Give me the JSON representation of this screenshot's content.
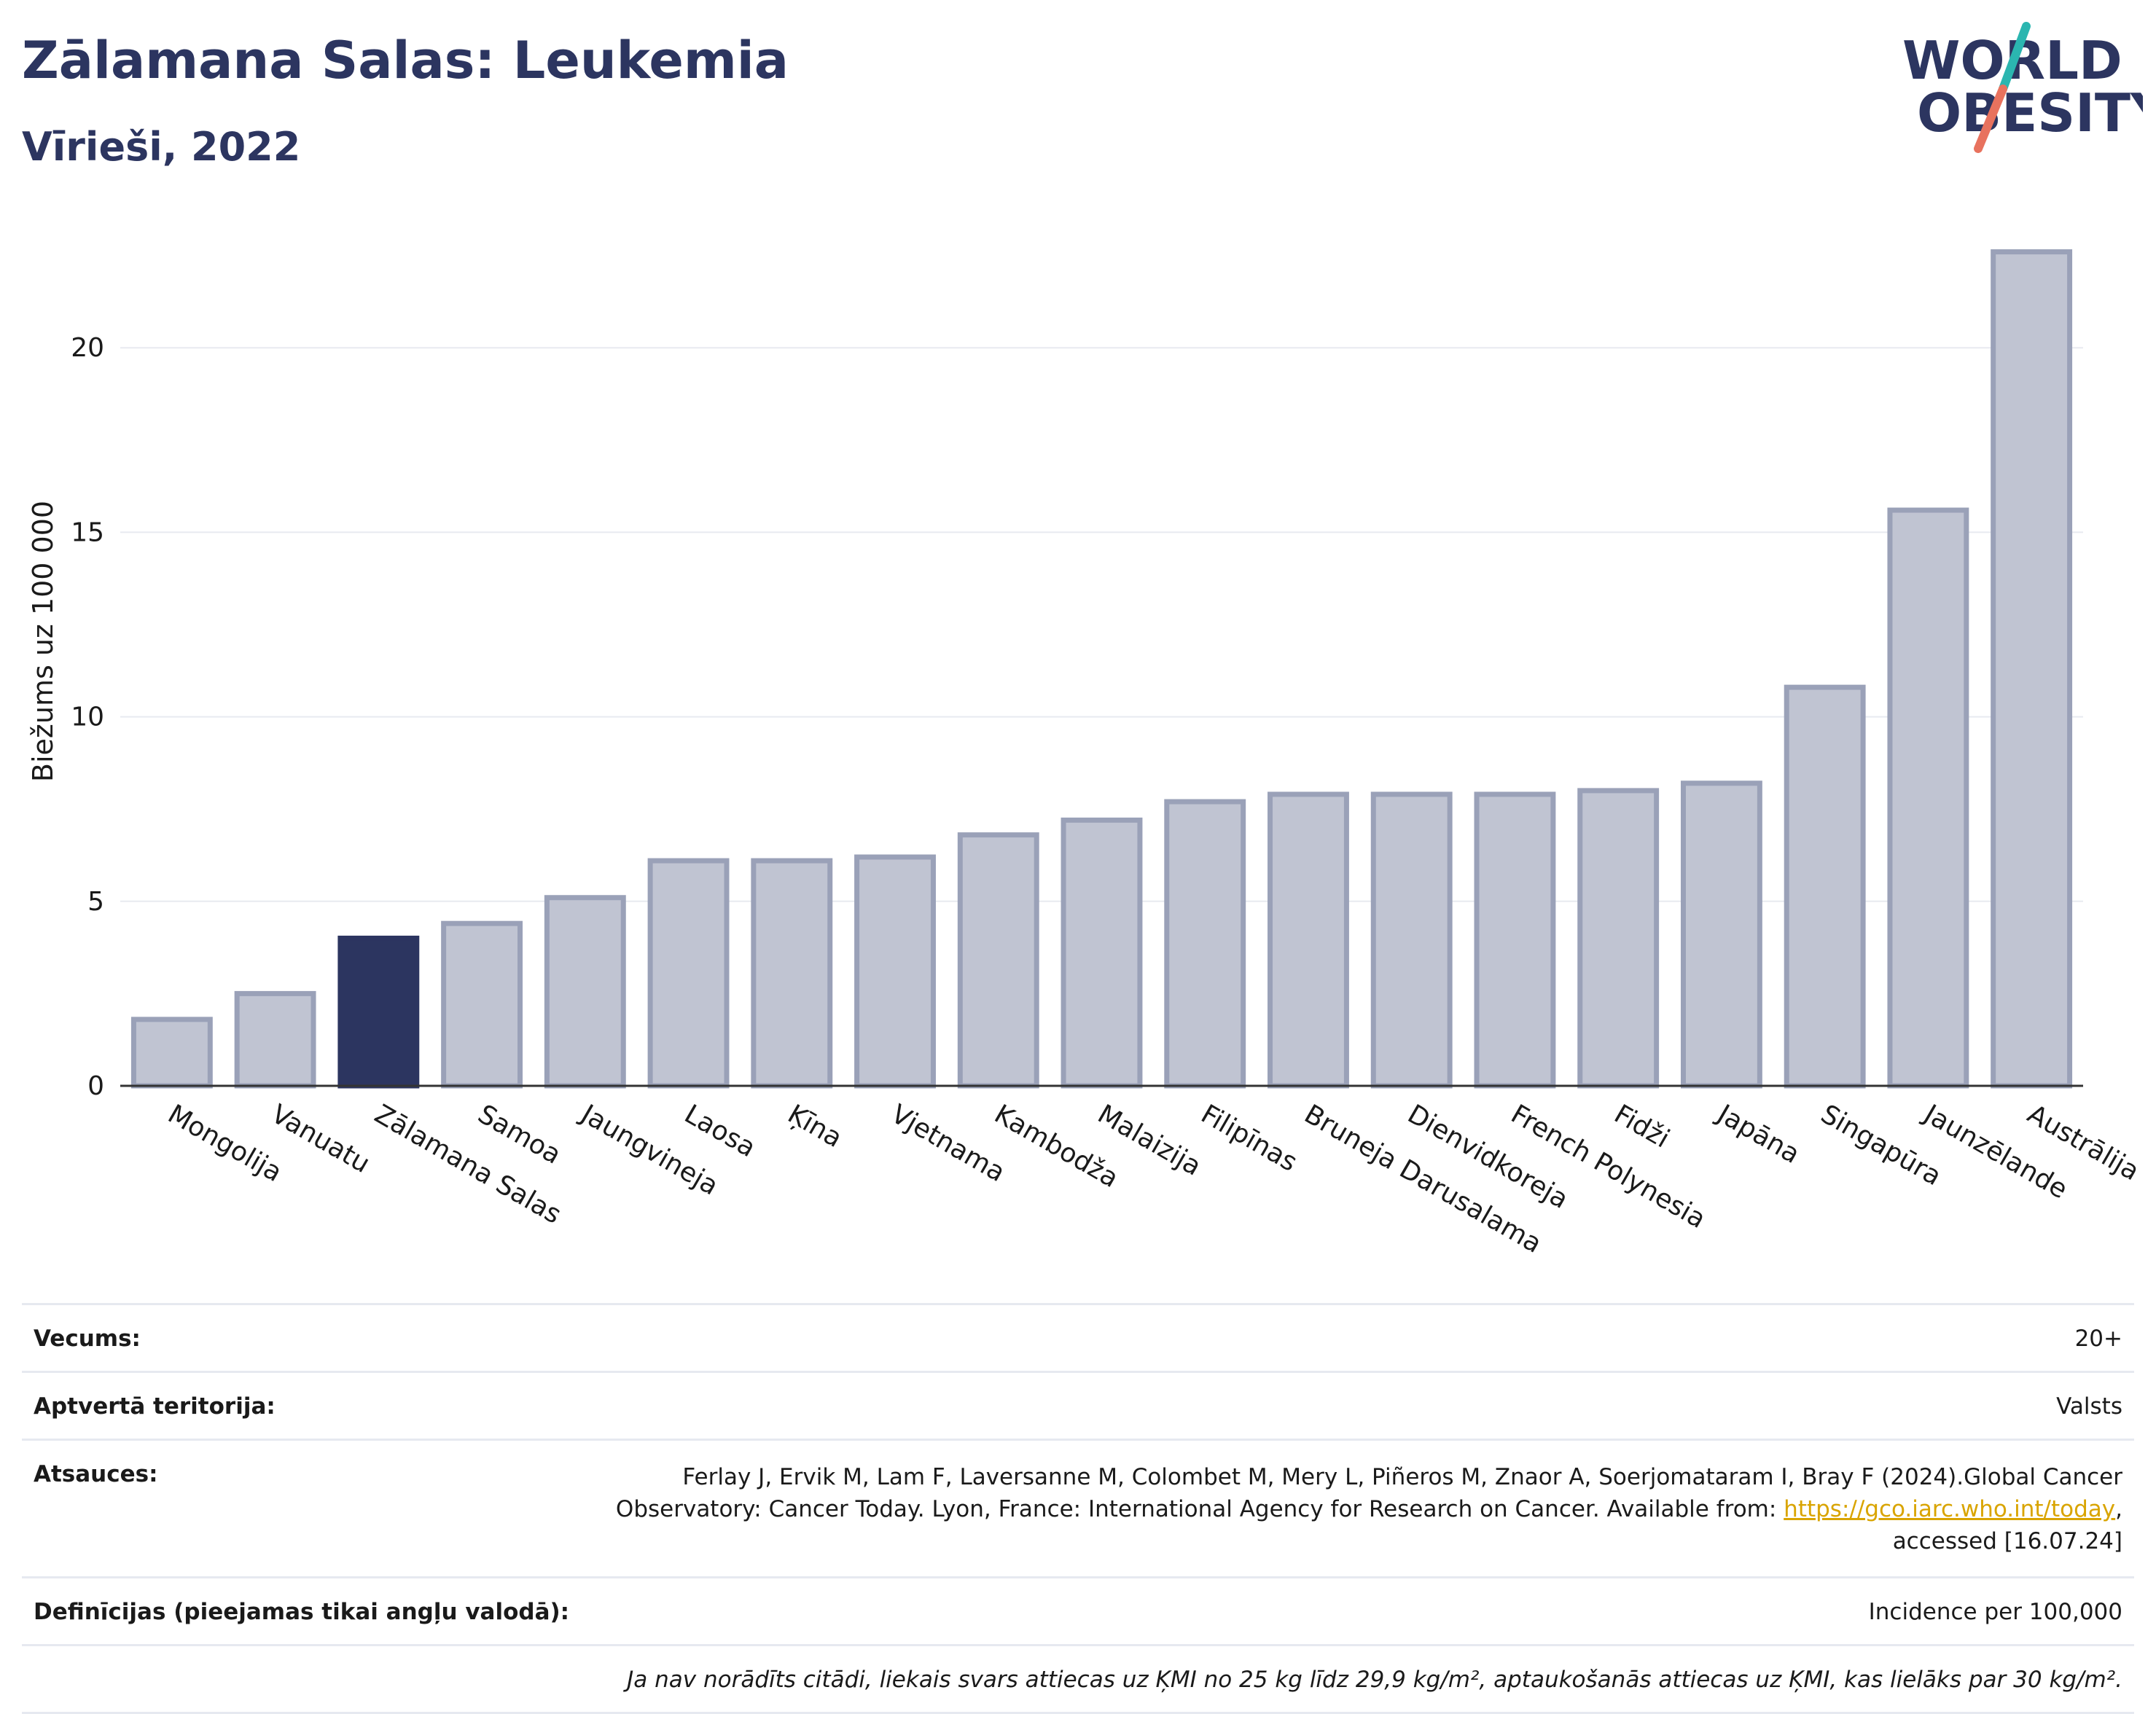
{
  "header": {
    "title": "Zālamana Salas: Leukemia",
    "subtitle": "Vīrieši, 2022"
  },
  "logo": {
    "line1": "WORLD",
    "line2": "OBESITY"
  },
  "colors": {
    "bar": "#c0c4d2",
    "bar_border": "#9aa1b8",
    "highlight": "#2c3560",
    "grid": "#e8eaf0",
    "axis": "#333333",
    "text": "#2c3560",
    "link": "#d9a400"
  },
  "chart_data": {
    "type": "bar",
    "ylabel": "Biežums uz 100 000",
    "ylim": [
      0,
      23.5
    ],
    "yticks": [
      0,
      5,
      10,
      15,
      20
    ],
    "grid": true,
    "highlight": "Zālamana Salas",
    "categories": [
      "Mongolija",
      "Vanuatu",
      "Zālamana Salas",
      "Samoa",
      "Jaungvineja",
      "Laosa",
      "Ķīna",
      "Vjetnama",
      "Kambodža",
      "Malaizija",
      "Filipīnas",
      "Bruneja Darusalama",
      "Dienvidkoreja",
      "French Polynesia",
      "Fidži",
      "Japāna",
      "Singapūra",
      "Jaunzēlande",
      "Austrālija"
    ],
    "values": [
      1.8,
      2.5,
      4.0,
      4.4,
      5.1,
      6.1,
      6.1,
      6.2,
      6.8,
      7.2,
      7.7,
      7.9,
      7.9,
      7.9,
      8.0,
      8.2,
      10.8,
      15.6,
      22.6
    ]
  },
  "table": {
    "rows": [
      {
        "label": "Vecums:",
        "value": "20+"
      },
      {
        "label": "Aptvertā teritorija:",
        "value": "Valsts"
      },
      {
        "label": "Atsauces:",
        "value_before": "Ferlay J, Ervik M, Lam F, Laversanne M, Colombet M, Mery L, Piñeros M, Znaor A, Soerjomataram I, Bray F (2024).Global Cancer Observatory: Cancer Today. Lyon, France: International Agency for Research on Cancer. Available from: ",
        "link": "https://gco.iarc.who.int/today",
        "value_after": ", accessed [16.07.24]"
      },
      {
        "label": "Definīcijas (pieejamas tikai angļu valodā):",
        "value": "Incidence per 100,000"
      }
    ],
    "note": "Ja nav norādīts citādi, liekais svars attiecas uz ĶMI no 25 kg līdz 29,9 kg/m², aptaukošanās attiecas uz ĶMI, kas lielāks par 30 kg/m²."
  }
}
